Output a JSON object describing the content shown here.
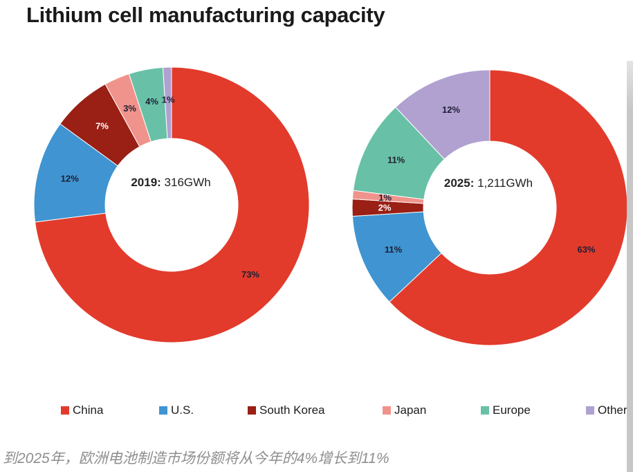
{
  "page": {
    "title": "Lithium cell manufacturing capacity",
    "caption": "到2025年，欧洲电池制造市场份额将从今年的4%增长到11%"
  },
  "legend": {
    "items": [
      {
        "label": "China",
        "color": "#E23B2C"
      },
      {
        "label": "U.S.",
        "color": "#4094D1"
      },
      {
        "label": "South Korea",
        "color": "#9A1F15"
      },
      {
        "label": "Japan",
        "color": "#F0938C"
      },
      {
        "label": "Europe",
        "color": "#68C1A6"
      },
      {
        "label": "Other",
        "color": "#B0A1D1"
      }
    ],
    "position": "bottom"
  },
  "chart_data": [
    {
      "type": "pie",
      "subtype": "donut",
      "title": "2019",
      "total_gwh": 316,
      "center_label": {
        "bold": "2019:",
        "value": " 316GWh"
      },
      "categories": [
        "China",
        "U.S.",
        "South Korea",
        "Japan",
        "Europe",
        "Other"
      ],
      "values": [
        73,
        12,
        7,
        3,
        4,
        1
      ],
      "value_labels": [
        "73%",
        "12%",
        "7%",
        "3%",
        "4%",
        "1%"
      ],
      "start_angle_deg": 0,
      "direction": "clockwise"
    },
    {
      "type": "pie",
      "subtype": "donut",
      "title": "2025",
      "total_gwh": 1211,
      "center_label": {
        "bold": "2025:",
        "value": " 1,211GWh"
      },
      "categories": [
        "China",
        "U.S.",
        "South Korea",
        "Japan",
        "Europe",
        "Other"
      ],
      "values": [
        63,
        11,
        2,
        1,
        11,
        12
      ],
      "value_labels": [
        "63%",
        "11%",
        "2%",
        "1%",
        "11%",
        "12%"
      ],
      "start_angle_deg": 0,
      "direction": "clockwise"
    }
  ],
  "slice_label_colors": {
    "dark": "#1E1E32",
    "light": "#FFFFFF",
    "per_category": [
      "dark",
      "dark",
      "light",
      "dark",
      "dark",
      "dark"
    ]
  }
}
